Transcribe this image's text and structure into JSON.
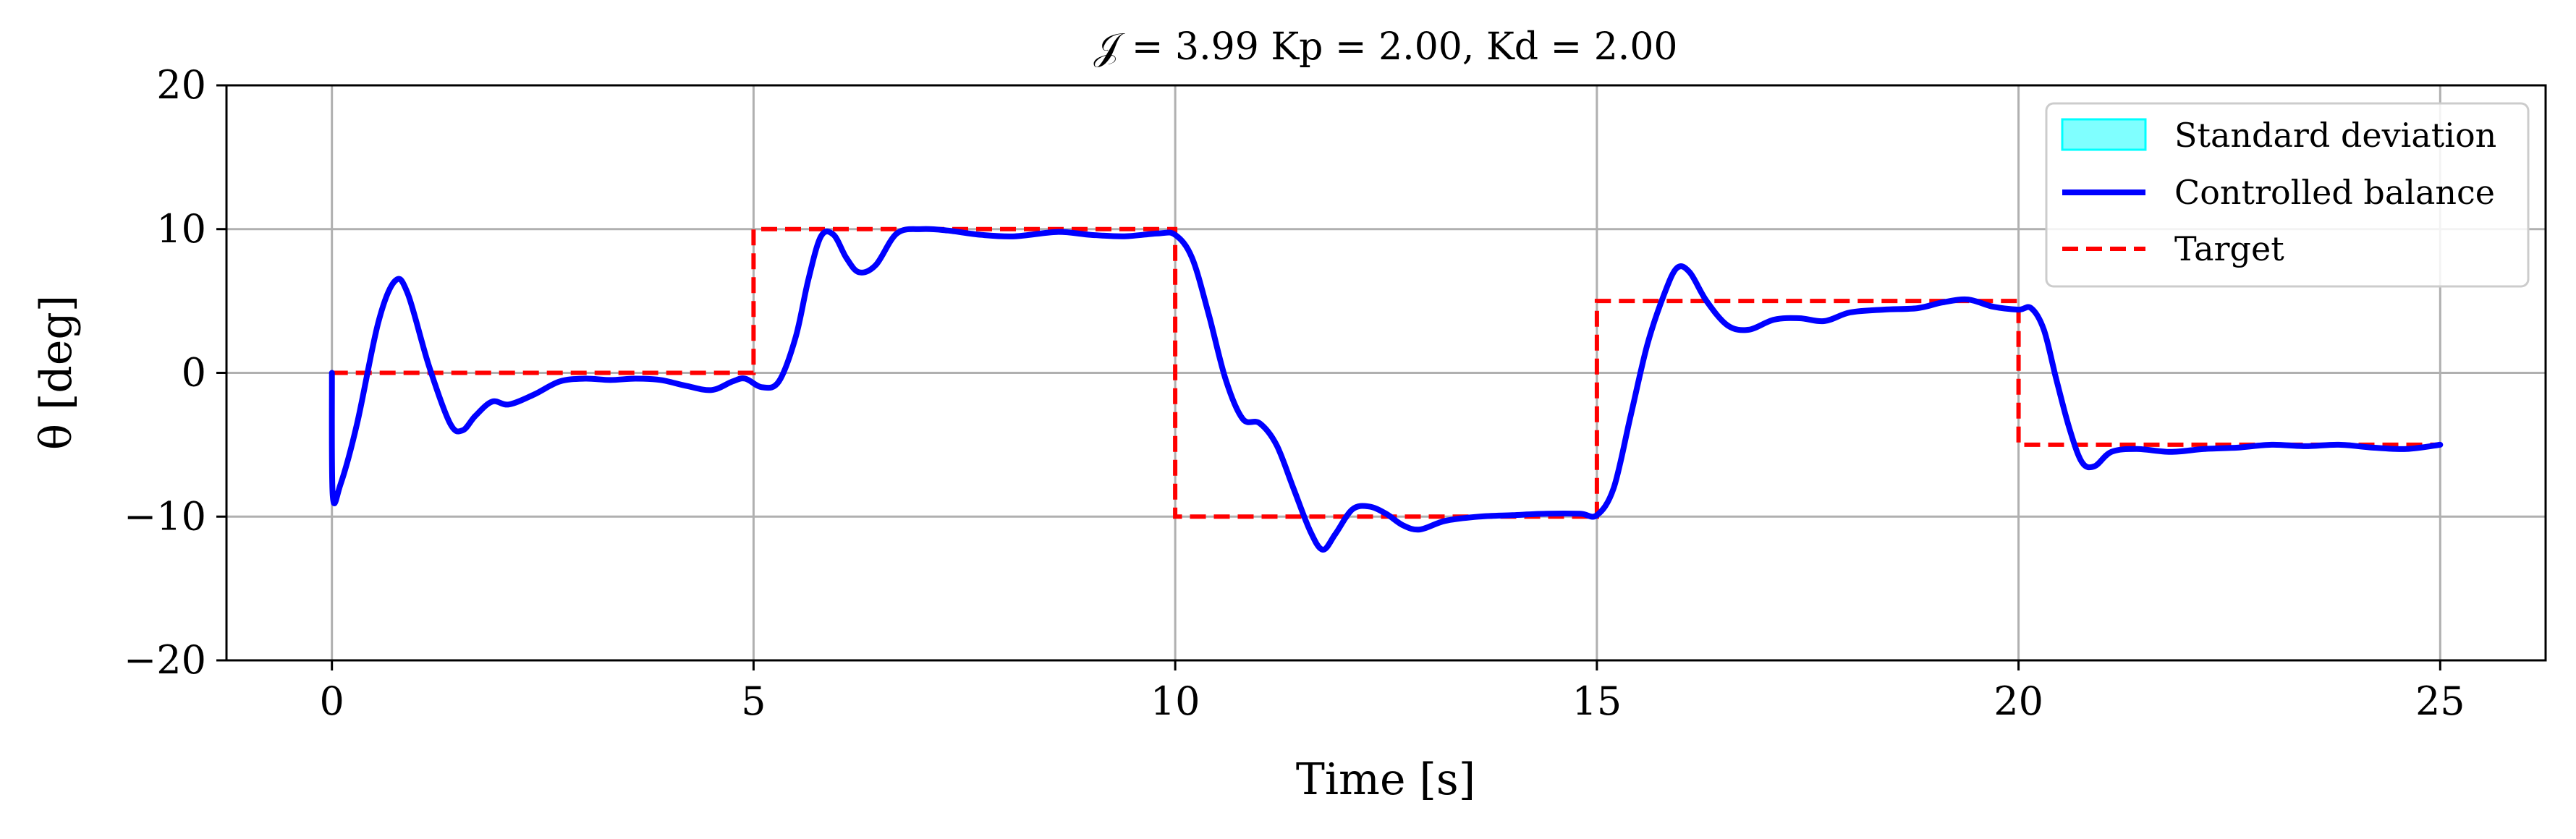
{
  "chart_data": {
    "type": "line",
    "title": "𝒥 = 3.99 Kp = 2.00, Kd = 2.00",
    "xlabel": "Time [s]",
    "ylabel": "θ [deg]",
    "xlim": [
      -1.25,
      26.25
    ],
    "ylim": [
      -20,
      20
    ],
    "xticks": [
      0,
      5,
      10,
      15,
      20,
      25
    ],
    "xtick_labels": [
      "0",
      "5",
      "10",
      "15",
      "20",
      "25"
    ],
    "yticks": [
      -20,
      -10,
      0,
      10,
      20
    ],
    "ytick_labels": [
      "−20",
      "−10",
      "0",
      "10",
      "20"
    ],
    "grid": true,
    "legend_position": "top-right",
    "series": [
      {
        "name": "Standard deviation",
        "kind": "band",
        "color": "#00ffff",
        "x": [],
        "lower": [],
        "upper": []
      },
      {
        "name": "Controlled balance",
        "kind": "line",
        "color": "#0000ff",
        "x": [
          0,
          0.01,
          0.1,
          0.3,
          0.55,
          0.75,
          0.9,
          1.15,
          1.4,
          1.55,
          1.7,
          1.9,
          2.1,
          2.4,
          2.7,
          3.0,
          3.3,
          3.6,
          3.9,
          4.2,
          4.5,
          4.75,
          4.9,
          5.1,
          5.3,
          5.5,
          5.65,
          5.8,
          5.95,
          6.1,
          6.25,
          6.45,
          6.7,
          7.0,
          7.3,
          7.7,
          8.1,
          8.6,
          9.0,
          9.4,
          9.8,
          10.0,
          10.2,
          10.4,
          10.6,
          10.8,
          11.0,
          11.2,
          11.4,
          11.6,
          11.75,
          11.9,
          12.1,
          12.3,
          12.5,
          12.7,
          12.9,
          13.2,
          13.6,
          14.0,
          14.4,
          14.8,
          15.0,
          15.2,
          15.4,
          15.6,
          15.8,
          15.95,
          16.1,
          16.3,
          16.55,
          16.8,
          17.1,
          17.4,
          17.7,
          18.0,
          18.4,
          18.8,
          19.1,
          19.4,
          19.7,
          20.0,
          20.15,
          20.3,
          20.45,
          20.6,
          20.75,
          20.9,
          21.1,
          21.4,
          21.8,
          22.2,
          22.6,
          23.0,
          23.4,
          23.8,
          24.2,
          24.6,
          25.0
        ],
        "y": [
          0,
          -8.5,
          -7.8,
          -3.5,
          3.5,
          6.4,
          5.5,
          0.5,
          -3.5,
          -4.0,
          -3.0,
          -2.0,
          -2.2,
          -1.5,
          -0.6,
          -0.4,
          -0.5,
          -0.4,
          -0.5,
          -0.9,
          -1.2,
          -0.6,
          -0.4,
          -1.0,
          -0.6,
          2.5,
          6.5,
          9.5,
          9.6,
          8.0,
          7.0,
          7.5,
          9.7,
          10.0,
          9.9,
          9.6,
          9.5,
          9.8,
          9.6,
          9.5,
          9.7,
          9.6,
          8.0,
          4.0,
          -0.5,
          -3.2,
          -3.5,
          -5.0,
          -8.0,
          -11.0,
          -12.3,
          -11.2,
          -9.5,
          -9.3,
          -9.8,
          -10.6,
          -10.9,
          -10.3,
          -10.0,
          -9.9,
          -9.8,
          -9.8,
          -9.9,
          -8.0,
          -3.0,
          2.0,
          5.5,
          7.3,
          7.0,
          5.0,
          3.3,
          3.0,
          3.7,
          3.8,
          3.6,
          4.2,
          4.4,
          4.5,
          4.9,
          5.1,
          4.6,
          4.4,
          4.5,
          3.0,
          -0.5,
          -3.8,
          -6.2,
          -6.5,
          -5.5,
          -5.3,
          -5.5,
          -5.3,
          -5.2,
          -5.0,
          -5.1,
          -5.0,
          -5.2,
          -5.3,
          -5.0
        ]
      },
      {
        "name": "Target",
        "kind": "step",
        "color": "#ff0000",
        "x": [
          0,
          5,
          5,
          10,
          10,
          15,
          15,
          20,
          20,
          25
        ],
        "y": [
          0,
          0,
          10,
          10,
          -10,
          -10,
          5,
          5,
          -5,
          -5
        ]
      }
    ]
  }
}
